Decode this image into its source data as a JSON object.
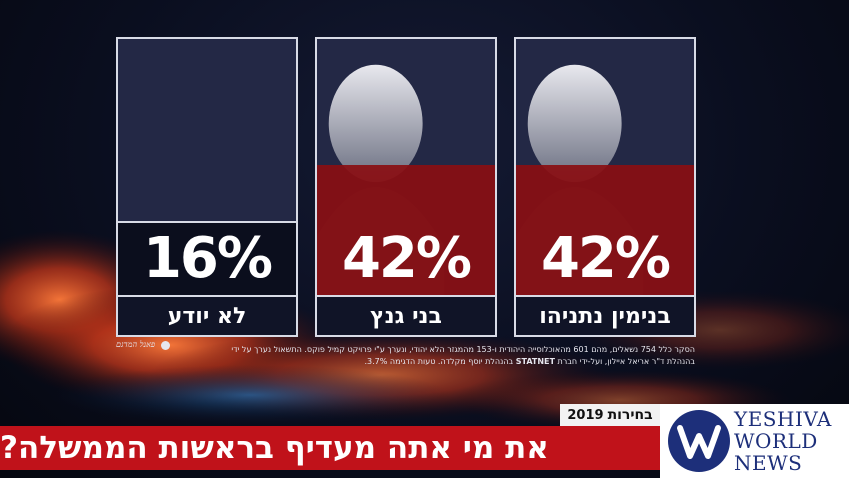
{
  "chart_data": {
    "type": "bar",
    "categories": [
      "בנימין נתניהו",
      "בני גנץ",
      "לא יודע"
    ],
    "values": [
      42,
      42,
      16
    ],
    "value_labels": [
      "42%",
      "42%",
      "16%"
    ],
    "ylim": [
      0,
      100
    ]
  },
  "footnote": {
    "line1": "הסקר כלל 754 נשאלים, מהם 601 מהאוכלוסייה היהודית ו-153 מהמגזר הלא יהודי, ונערך ע\"י פרויקט קמיל פוקס. התשאול  נערך על ידי",
    "line2": "בהנהלת ד\"ר אריאל איילון, ועל-ידי חברת",
    "line2b": "בהנהלת יוסף מקלדה. טעות הדגימה 3.7%.",
    "statnet": "STATNET",
    "panels": "פאנל המדגם"
  },
  "ticker": {
    "tag_label": "בחירות",
    "tag_year": "2019",
    "headline": "את מי אתה מעדיף בראשות הממשלה?"
  },
  "logo": {
    "line1": "YESHIVA",
    "line2": "WORLD",
    "line3": "NEWS",
    "mark": "W"
  },
  "colors": {
    "bar_fill": "#8a0e12",
    "card_bg": "#232845",
    "headline_bar": "#c0121a",
    "logo_blue": "#1d2f7a"
  }
}
